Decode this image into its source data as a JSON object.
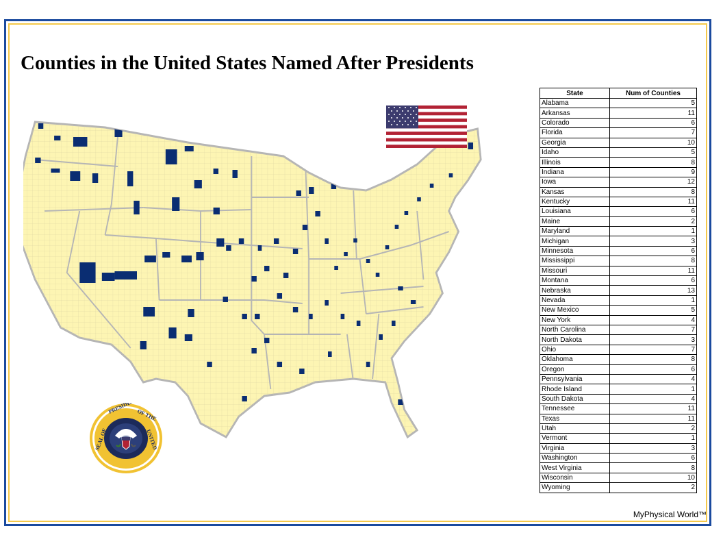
{
  "title": "Counties in the United States Named After Presidents",
  "table": {
    "headers": [
      "State",
      "Num of Counties"
    ],
    "rows": [
      [
        "Alabama",
        "5"
      ],
      [
        "Arkansas",
        "11"
      ],
      [
        "Colorado",
        "6"
      ],
      [
        "Florida",
        "7"
      ],
      [
        "Georgia",
        "10"
      ],
      [
        "Idaho",
        "5"
      ],
      [
        "Illinois",
        "8"
      ],
      [
        "Indiana",
        "9"
      ],
      [
        "Iowa",
        "12"
      ],
      [
        "Kansas",
        "8"
      ],
      [
        "Kentucky",
        "11"
      ],
      [
        "Louisiana",
        "6"
      ],
      [
        "Maine",
        "2"
      ],
      [
        "Maryland",
        "1"
      ],
      [
        "Michigan",
        "3"
      ],
      [
        "Minnesota",
        "6"
      ],
      [
        "Mississippi",
        "8"
      ],
      [
        "Missouri",
        "11"
      ],
      [
        "Montana",
        "6"
      ],
      [
        "Nebraska",
        "13"
      ],
      [
        "Nevada",
        "1"
      ],
      [
        "New Mexico",
        "5"
      ],
      [
        "New York",
        "4"
      ],
      [
        "North Carolina",
        "7"
      ],
      [
        "North Dakota",
        "3"
      ],
      [
        "Ohio",
        "7"
      ],
      [
        "Oklahoma",
        "8"
      ],
      [
        "Oregon",
        "6"
      ],
      [
        "Pennsylvania",
        "4"
      ],
      [
        "Rhode Island",
        "1"
      ],
      [
        "South Dakota",
        "4"
      ],
      [
        "Tennessee",
        "11"
      ],
      [
        "Texas",
        "11"
      ],
      [
        "Utah",
        "2"
      ],
      [
        "Vermont",
        "1"
      ],
      [
        "Virginia",
        "3"
      ],
      [
        "Washington",
        "6"
      ],
      [
        "West Virginia",
        "8"
      ],
      [
        "Wisconsin",
        "10"
      ],
      [
        "Wyoming",
        "2"
      ]
    ]
  },
  "seal": {
    "text": "SEAL OF THE PRESIDENT OF THE UNITED STATES"
  },
  "credit": "MyPhysical World™",
  "colors": {
    "land": "#fdf5b3",
    "state_border": "#b5b5b5",
    "highlight": "#0a2d72",
    "frame_outer": "#1a4a9e",
    "frame_inner": "#f4c84a"
  }
}
